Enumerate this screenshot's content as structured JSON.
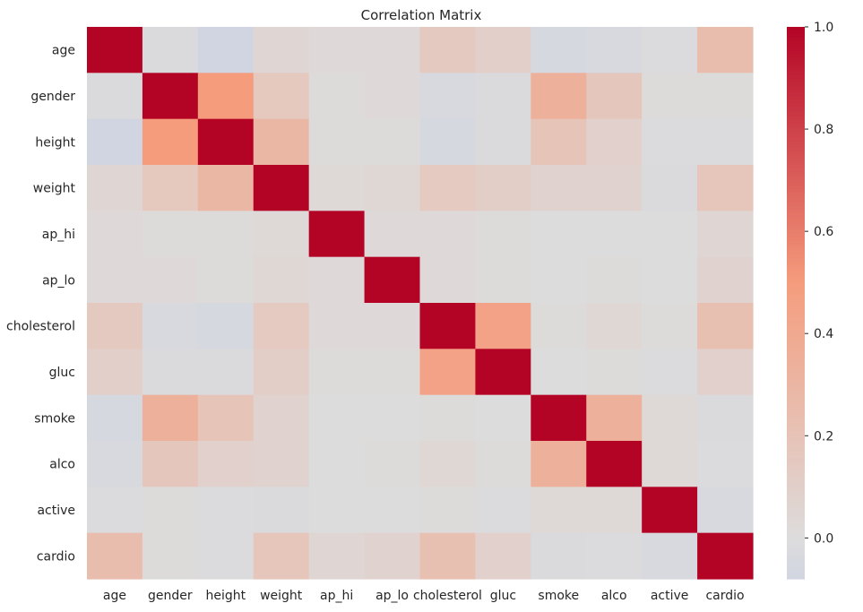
{
  "chart_data": {
    "type": "heatmap",
    "title": "Correlation Matrix",
    "xlabel": "",
    "ylabel": "",
    "colormap": "coolwarm",
    "center": 0,
    "vmin": -0.08,
    "vmax": 1.0,
    "colorbar_ticks": [
      "1.0",
      "0.8",
      "0.6",
      "0.4",
      "0.2",
      "0.0"
    ],
    "colorbar_tick_values": [
      1.0,
      0.8,
      0.6,
      0.4,
      0.2,
      0.0
    ],
    "labels": [
      "age",
      "gender",
      "height",
      "weight",
      "ap_hi",
      "ap_lo",
      "cholesterol",
      "gluc",
      "smoke",
      "alco",
      "active",
      "cardio"
    ],
    "values": [
      [
        1.0,
        -0.02,
        -0.08,
        0.05,
        0.02,
        0.02,
        0.15,
        0.1,
        -0.05,
        -0.03,
        -0.01,
        0.24
      ],
      [
        -0.02,
        1.0,
        0.5,
        0.16,
        0.01,
        0.02,
        -0.04,
        -0.02,
        0.34,
        0.17,
        0.01,
        0.01
      ],
      [
        -0.08,
        0.5,
        1.0,
        0.29,
        0.01,
        0.01,
        -0.05,
        -0.02,
        0.19,
        0.09,
        -0.01,
        -0.01
      ],
      [
        0.05,
        0.16,
        0.29,
        1.0,
        0.03,
        0.04,
        0.14,
        0.11,
        0.07,
        0.07,
        -0.02,
        0.18
      ],
      [
        0.02,
        0.01,
        0.01,
        0.03,
        1.0,
        0.02,
        0.02,
        0.01,
        -0.0,
        0.0,
        -0.0,
        0.05
      ],
      [
        0.02,
        0.02,
        0.01,
        0.04,
        0.02,
        1.0,
        0.02,
        0.01,
        0.0,
        0.01,
        0.0,
        0.07
      ],
      [
        0.15,
        -0.04,
        -0.05,
        0.14,
        0.02,
        0.02,
        1.0,
        0.45,
        0.01,
        0.04,
        0.01,
        0.22
      ],
      [
        0.1,
        -0.02,
        -0.02,
        0.11,
        0.01,
        0.01,
        0.45,
        1.0,
        -0.0,
        0.01,
        -0.01,
        0.09
      ],
      [
        -0.05,
        0.34,
        0.19,
        0.07,
        -0.0,
        0.0,
        0.01,
        -0.0,
        1.0,
        0.34,
        0.03,
        -0.02
      ],
      [
        -0.03,
        0.17,
        0.09,
        0.07,
        0.0,
        0.01,
        0.04,
        0.01,
        0.34,
        1.0,
        0.03,
        -0.01
      ],
      [
        -0.01,
        0.01,
        -0.01,
        -0.02,
        -0.0,
        0.0,
        0.01,
        -0.01,
        0.03,
        0.03,
        1.0,
        -0.04
      ],
      [
        0.24,
        0.01,
        -0.01,
        0.18,
        0.05,
        0.07,
        0.22,
        0.09,
        -0.02,
        -0.01,
        -0.04,
        1.0
      ]
    ]
  }
}
